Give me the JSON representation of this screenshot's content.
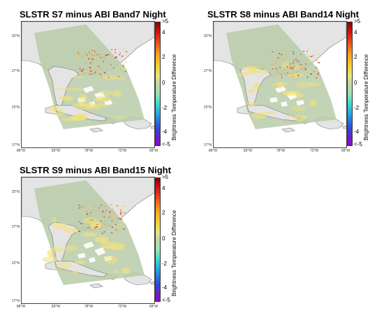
{
  "panels": [
    {
      "title": "SLSTR S7 minus ABI Band7 Night"
    },
    {
      "title": "SLSTR S8 minus ABI Band14 Night"
    },
    {
      "title": "SLSTR S9 minus ABI Band15 Night"
    }
  ],
  "lat_ticks": [
    "32°N",
    "27°N",
    "22°N",
    "17°N"
  ],
  "lon_ticks": [
    "88°W",
    "83°W",
    "78°W",
    "73°W",
    "68°W"
  ],
  "colorbar": {
    "label": "Brightness Temperature Difference",
    "ticks": [
      ">5",
      "4",
      "2",
      "0",
      "-2",
      "-4",
      "<-5"
    ],
    "colors": {
      "max": "#8b0000",
      "mid": "#c4d4b4",
      "min": "#9b00d8"
    }
  },
  "colors": {
    "land": "#e4e4e4",
    "coast": "#7a7a7a",
    "swath": "#b9cba8",
    "warm": "#f3e27a"
  }
}
